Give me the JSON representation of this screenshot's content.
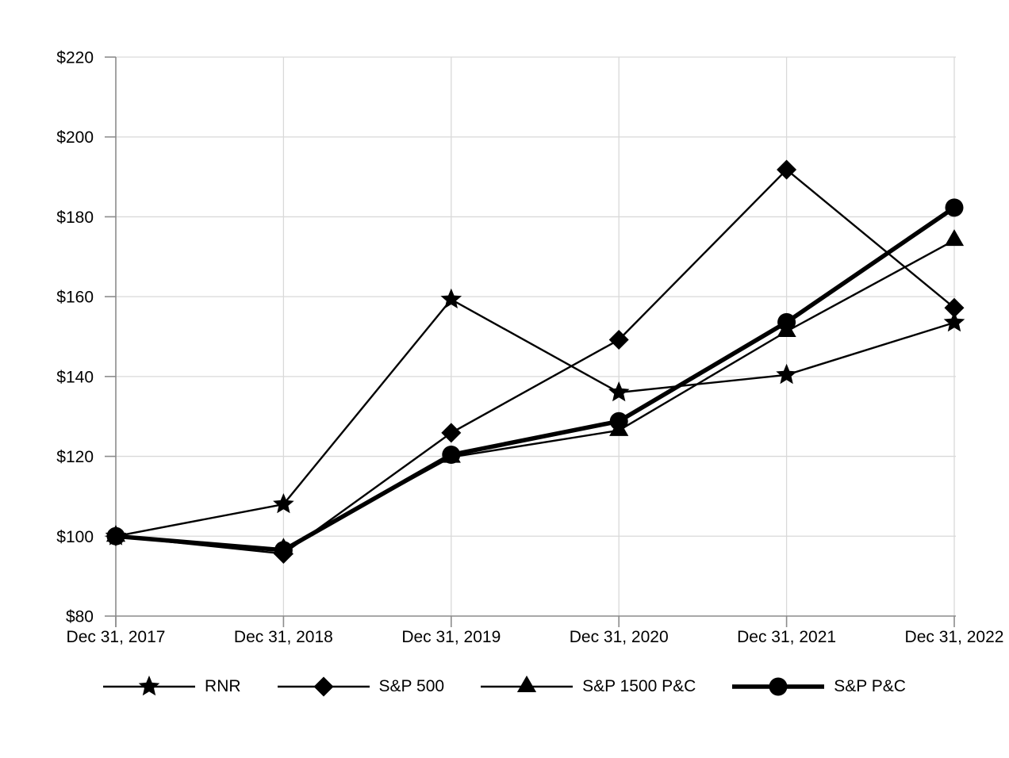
{
  "chart_data": {
    "type": "line",
    "title": "",
    "categories": [
      "Dec 31, 2017",
      "Dec 31, 2018",
      "Dec 31, 2019",
      "Dec 31, 2020",
      "Dec 31, 2021",
      "Dec 31, 2022"
    ],
    "series": [
      {
        "name": "RNR",
        "marker": "star",
        "line_weight": "thin",
        "values": [
          100,
          108.0,
          159.3,
          136.0,
          140.4,
          153.5
        ]
      },
      {
        "name": "S&P 500",
        "marker": "diamond",
        "line_weight": "thin",
        "values": [
          100,
          95.6,
          125.9,
          149.2,
          191.8,
          157.2
        ]
      },
      {
        "name": "S&P 1500 P&C",
        "marker": "triangle",
        "line_weight": "thin",
        "values": [
          100,
          96.8,
          119.8,
          126.5,
          151.3,
          174.1
        ]
      },
      {
        "name": "S&P P&C",
        "marker": "circle",
        "line_weight": "thick",
        "values": [
          100,
          96.5,
          120.4,
          128.8,
          153.6,
          182.3
        ]
      }
    ],
    "ylim": [
      80,
      220
    ],
    "ytick_step": 20,
    "ytick_labels": [
      "$80",
      "$100",
      "$120",
      "$140",
      "$160",
      "$180",
      "$200",
      "$220"
    ],
    "grid": true,
    "legend_position": "bottom",
    "colors": {
      "series": "#000000",
      "grid": "#d9d9d9",
      "axis": "#8c8c8c",
      "text": "#000000",
      "background": "#ffffff"
    }
  }
}
